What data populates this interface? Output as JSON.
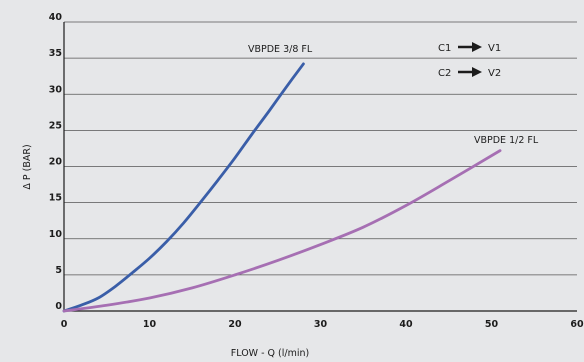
{
  "chart_data": {
    "type": "line",
    "xlabel": "FLOW - Q (l/min)",
    "ylabel": "Δ P (BAR)",
    "xlim": [
      0,
      60
    ],
    "ylim": [
      0,
      40
    ],
    "x_ticks": [
      "0",
      "10",
      "20",
      "30",
      "40",
      "50",
      "60"
    ],
    "y_ticks": [
      "0",
      "5",
      "10",
      "15",
      "20",
      "25",
      "30",
      "35",
      "40"
    ],
    "grid": "horizontal",
    "legend": [
      {
        "from": "C1",
        "to": "V1"
      },
      {
        "from": "C2",
        "to": "V2"
      }
    ],
    "series": [
      {
        "name": "VBPDE 3/8 FL",
        "color": "#3a5ea8",
        "x": [
          0,
          2,
          4,
          6,
          8,
          10,
          12,
          14,
          16,
          18,
          20,
          22,
          24,
          26,
          28
        ],
        "y": [
          0,
          0.8,
          1.8,
          3.4,
          5.3,
          7.3,
          9.6,
          12.2,
          15.1,
          18.1,
          21.2,
          24.5,
          27.7,
          31.0,
          34.2
        ]
      },
      {
        "name": "VBPDE 1/2 FL",
        "color": "#a66fb3",
        "x": [
          0,
          5,
          10,
          15,
          20,
          25,
          30,
          35,
          40,
          45,
          51
        ],
        "y": [
          0,
          0.8,
          1.8,
          3.2,
          5.0,
          7.0,
          9.2,
          11.6,
          14.6,
          18.0,
          22.2
        ]
      }
    ]
  }
}
